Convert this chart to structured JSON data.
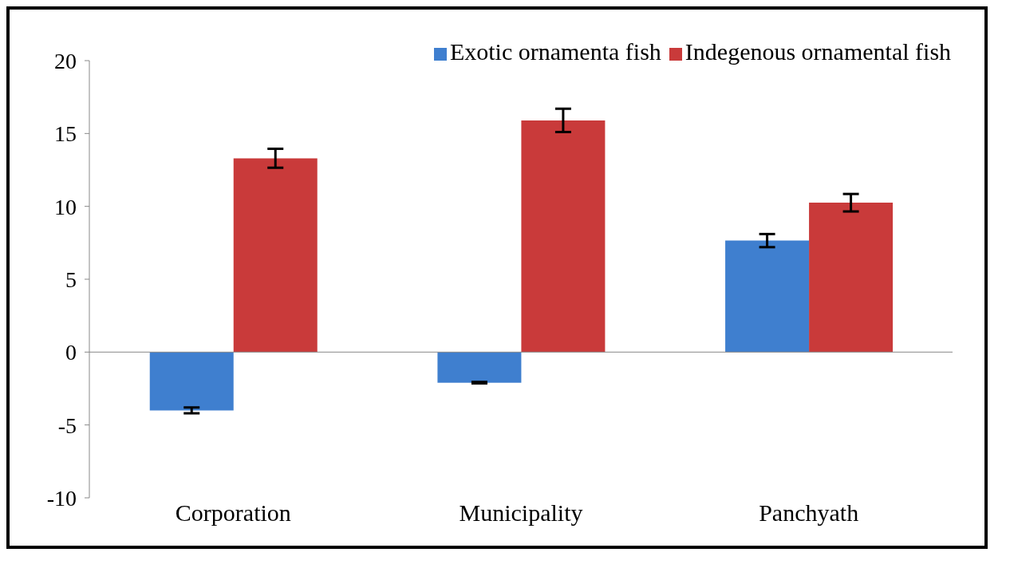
{
  "chart_data": {
    "type": "bar",
    "categories": [
      "Corporation",
      "Municipality",
      "Panchyath"
    ],
    "series": [
      {
        "name": "Exotic ornamenta fish",
        "color": "#3f7fcf",
        "values": [
          -4.0,
          -2.1,
          7.65
        ],
        "errors": [
          0.2,
          0.05,
          0.45
        ]
      },
      {
        "name": "Indegenous ornamental fish",
        "color": "#c93a3a",
        "values": [
          13.3,
          15.9,
          10.25
        ],
        "errors": [
          0.65,
          0.8,
          0.6
        ]
      }
    ],
    "ylim": [
      -10,
      20
    ],
    "yticks": [
      -10,
      -5,
      0,
      5,
      10,
      15,
      20
    ],
    "legend": "top"
  }
}
